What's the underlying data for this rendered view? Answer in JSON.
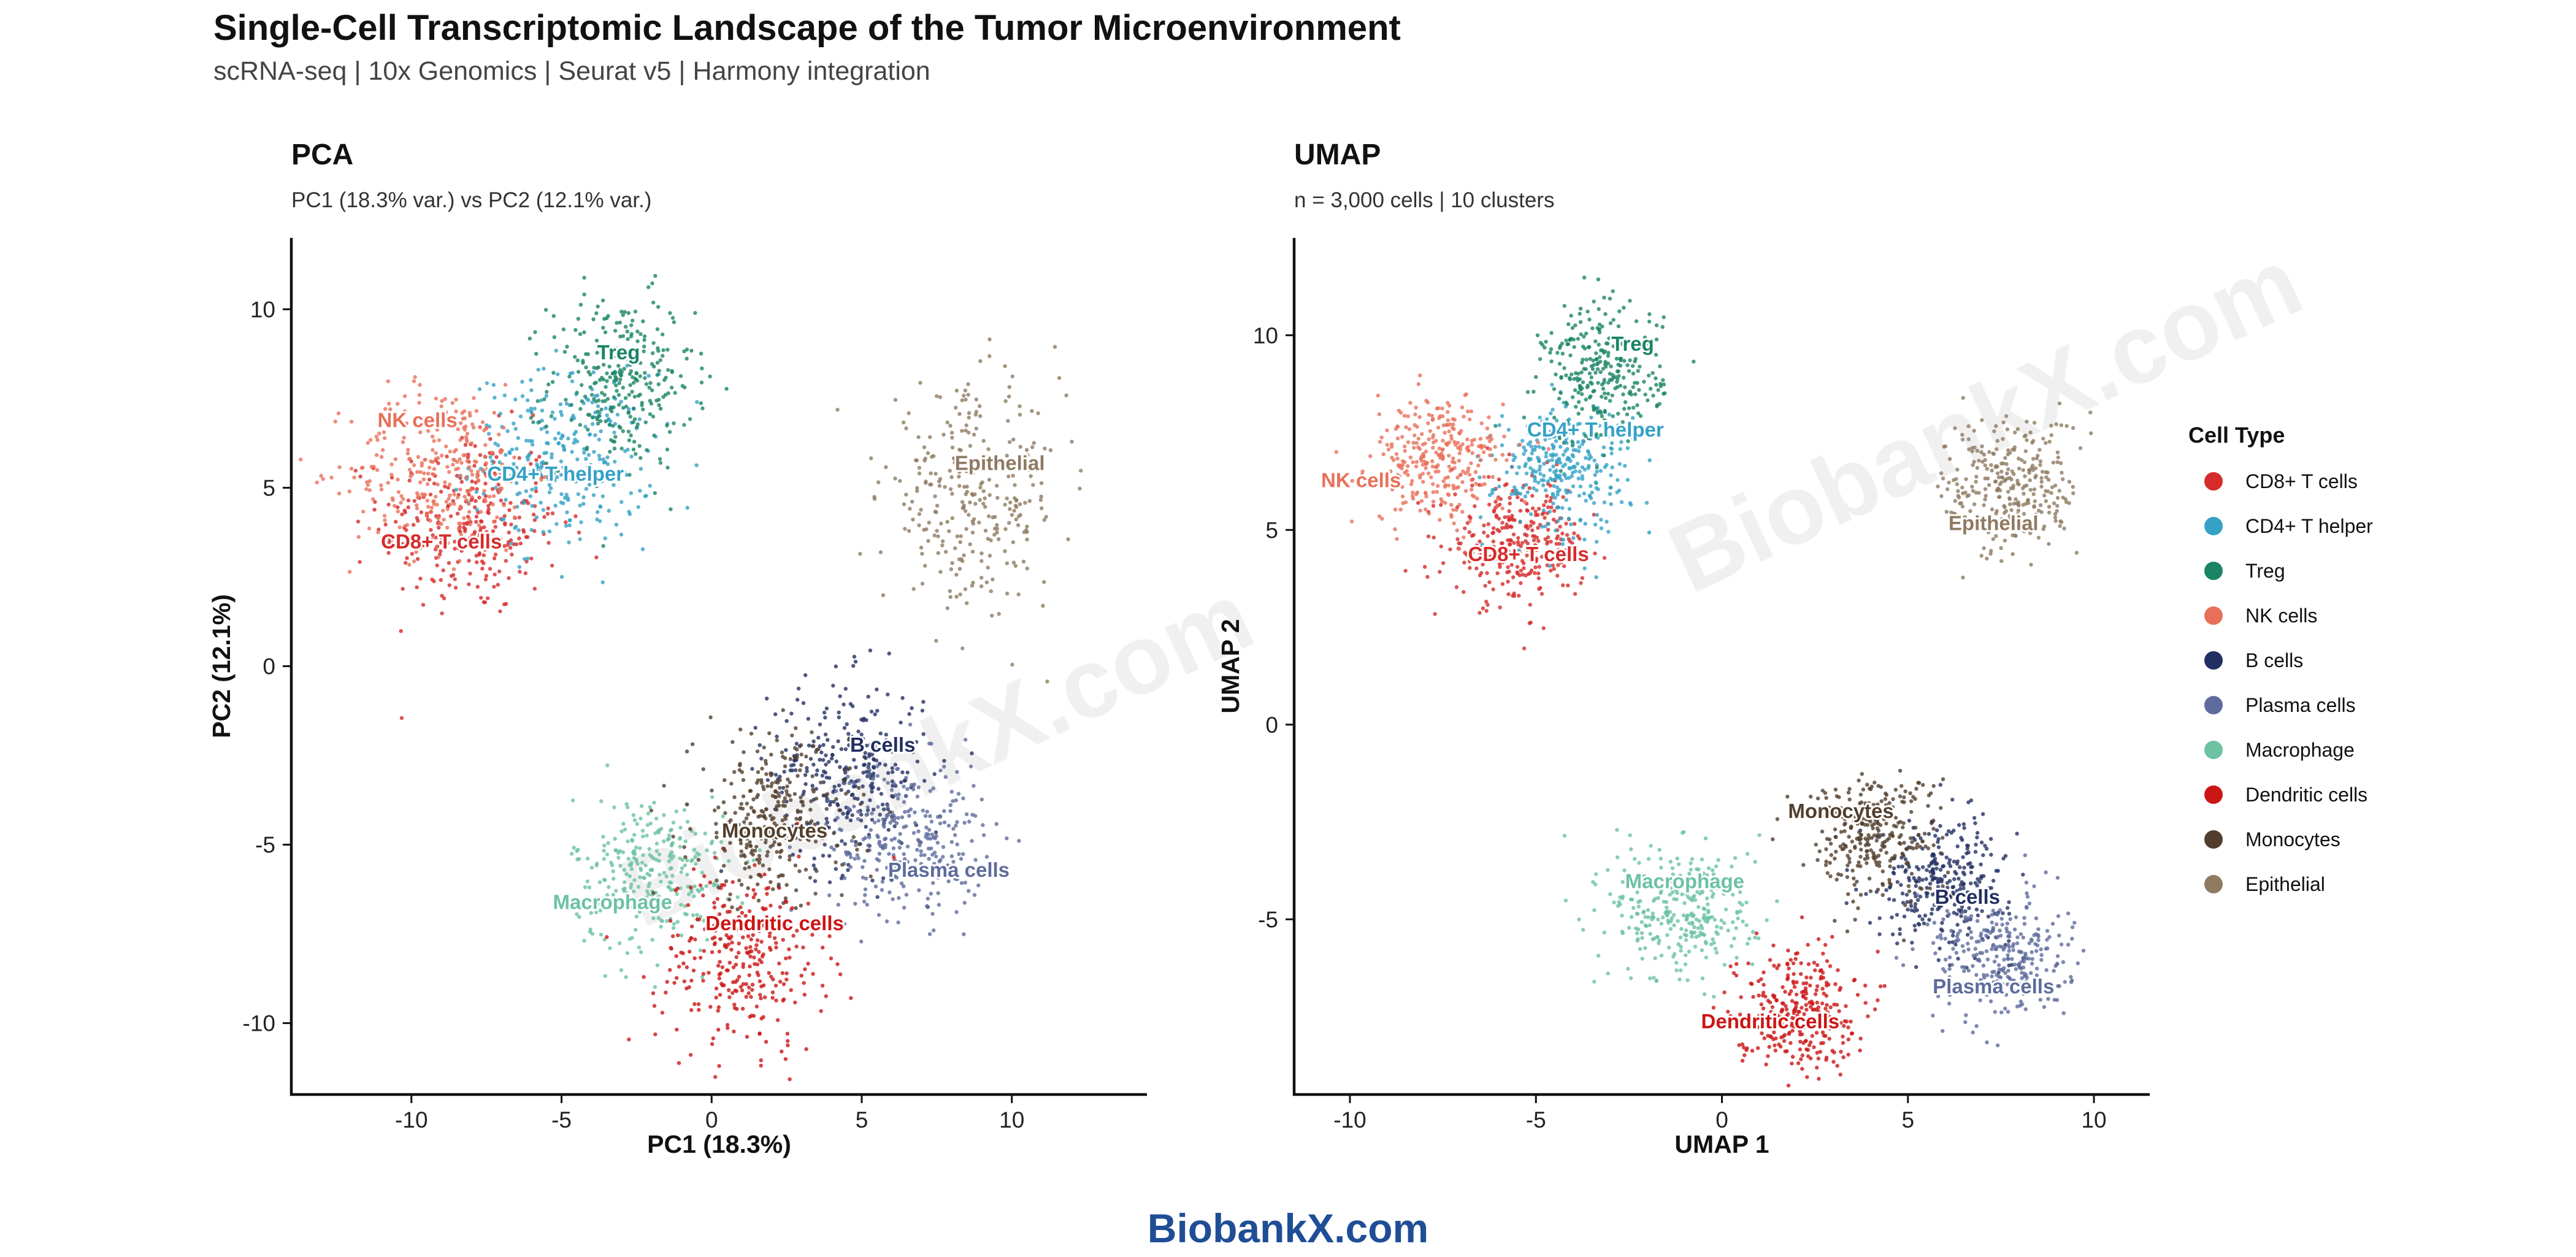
{
  "header": {
    "title": "Single-Cell Transcriptomic Landscape of the Tumor Microenvironment",
    "subtitle": "scRNA-seq | 10x Genomics | Seurat v5 | Harmony integration"
  },
  "footer": {
    "brand": "BiobankX.com"
  },
  "watermark": {
    "text": "BiobankX.com"
  },
  "legend": {
    "title": "Cell Type"
  },
  "clusters": [
    {
      "name": "CD8+ T cells",
      "color": "#d62b2b"
    },
    {
      "name": "CD4+ T helper",
      "color": "#35a1c6"
    },
    {
      "name": "Treg",
      "color": "#1a8565"
    },
    {
      "name": "NK cells",
      "color": "#e8705a"
    },
    {
      "name": "B cells",
      "color": "#232f62"
    },
    {
      "name": "Plasma cells",
      "color": "#5e6b9c"
    },
    {
      "name": "Macrophage",
      "color": "#6cc2a2"
    },
    {
      "name": "Dendritic cells",
      "color": "#cc1515"
    },
    {
      "name": "Monocytes",
      "color": "#523e2d"
    },
    {
      "name": "Epithelial",
      "color": "#8f7a62"
    }
  ],
  "chart_data": [
    {
      "type": "scatter",
      "title": "PCA",
      "subtitle": "PC1 (18.3% var.) vs PC2 (12.1% var.)",
      "xlabel": "PC1 (18.3%)",
      "ylabel": "PC2 (12.1%)",
      "xlim": [
        -14,
        14.5
      ],
      "ylim": [
        -12,
        12
      ],
      "xticks": [
        -10,
        -5,
        0,
        5,
        10
      ],
      "yticks": [
        -10,
        -5,
        0,
        5,
        10
      ],
      "grid": false,
      "cells_per_cluster": 300,
      "series": [
        {
          "name": "CD8+ T cells",
          "center": [
            -8.0,
            4.0
          ],
          "spread": [
            1.5,
            1.3
          ],
          "label_pos": [
            -9.0,
            3.3
          ]
        },
        {
          "name": "CD4+ T helper",
          "center": [
            -5.0,
            5.8
          ],
          "spread": [
            1.5,
            1.2
          ],
          "label_pos": [
            -5.2,
            5.2
          ]
        },
        {
          "name": "Treg",
          "center": [
            -3.0,
            8.0
          ],
          "spread": [
            1.2,
            1.2
          ],
          "label_pos": [
            -3.1,
            8.6
          ]
        },
        {
          "name": "NK cells",
          "center": [
            -9.0,
            5.5
          ],
          "spread": [
            1.5,
            1.2
          ],
          "label_pos": [
            -9.8,
            6.7
          ]
        },
        {
          "name": "B cells",
          "center": [
            4.5,
            -3.0
          ],
          "spread": [
            1.3,
            1.3
          ],
          "label_pos": [
            5.7,
            -2.4
          ]
        },
        {
          "name": "Plasma cells",
          "center": [
            6.5,
            -4.8
          ],
          "spread": [
            1.3,
            1.1
          ],
          "label_pos": [
            7.9,
            -5.9
          ]
        },
        {
          "name": "Macrophage",
          "center": [
            -2.0,
            -5.8
          ],
          "spread": [
            1.3,
            1.1
          ],
          "label_pos": [
            -3.3,
            -6.8
          ]
        },
        {
          "name": "Dendritic cells",
          "center": [
            1.0,
            -8.2
          ],
          "spread": [
            1.4,
            1.3
          ],
          "label_pos": [
            2.1,
            -7.4
          ]
        },
        {
          "name": "Monocytes",
          "center": [
            2.0,
            -4.3
          ],
          "spread": [
            1.3,
            1.2
          ],
          "label_pos": [
            2.1,
            -4.8
          ]
        },
        {
          "name": "Epithelial",
          "center": [
            8.7,
            4.7
          ],
          "spread": [
            1.5,
            1.5
          ],
          "label_pos": [
            9.6,
            5.5
          ]
        }
      ]
    },
    {
      "type": "scatter",
      "title": "UMAP",
      "subtitle": "n = 3,000 cells | 10 clusters",
      "xlabel": "UMAP 1",
      "ylabel": "UMAP 2",
      "xlim": [
        -11.5,
        11.5
      ],
      "ylim": [
        -9.5,
        12.5
      ],
      "xticks": [
        -10,
        -5,
        0,
        5,
        10
      ],
      "yticks": [
        -5,
        0,
        5,
        10
      ],
      "grid": false,
      "cells_per_cluster": 300,
      "series": [
        {
          "name": "CD8+ T cells",
          "center": [
            -5.5,
            4.7
          ],
          "spread": [
            0.9,
            0.8
          ],
          "label_pos": [
            -5.2,
            4.2
          ]
        },
        {
          "name": "CD4+ T helper",
          "center": [
            -4.3,
            6.6
          ],
          "spread": [
            0.9,
            0.8
          ],
          "label_pos": [
            -3.4,
            7.4
          ]
        },
        {
          "name": "Treg",
          "center": [
            -3.2,
            9.0
          ],
          "spread": [
            0.8,
            0.9
          ],
          "label_pos": [
            -2.4,
            9.6
          ]
        },
        {
          "name": "NK cells",
          "center": [
            -7.6,
            6.8
          ],
          "spread": [
            0.9,
            0.8
          ],
          "label_pos": [
            -9.7,
            6.1
          ]
        },
        {
          "name": "B cells",
          "center": [
            6.0,
            -4.0
          ],
          "spread": [
            0.9,
            0.8
          ],
          "label_pos": [
            6.6,
            -4.6
          ]
        },
        {
          "name": "Plasma cells",
          "center": [
            7.5,
            -6.0
          ],
          "spread": [
            0.9,
            0.8
          ],
          "label_pos": [
            7.3,
            -6.9
          ]
        },
        {
          "name": "Macrophage",
          "center": [
            -1.0,
            -4.8
          ],
          "spread": [
            1.0,
            0.9
          ],
          "label_pos": [
            -1.0,
            -4.2
          ]
        },
        {
          "name": "Dendritic cells",
          "center": [
            2.0,
            -7.3
          ],
          "spread": [
            0.8,
            0.8
          ],
          "label_pos": [
            1.3,
            -7.8
          ]
        },
        {
          "name": "Monocytes",
          "center": [
            4.0,
            -2.8
          ],
          "spread": [
            0.9,
            0.8
          ],
          "label_pos": [
            3.2,
            -2.4
          ]
        },
        {
          "name": "Epithelial",
          "center": [
            7.8,
            6.1
          ],
          "spread": [
            0.9,
            0.9
          ],
          "label_pos": [
            7.3,
            5.0
          ]
        }
      ]
    }
  ]
}
